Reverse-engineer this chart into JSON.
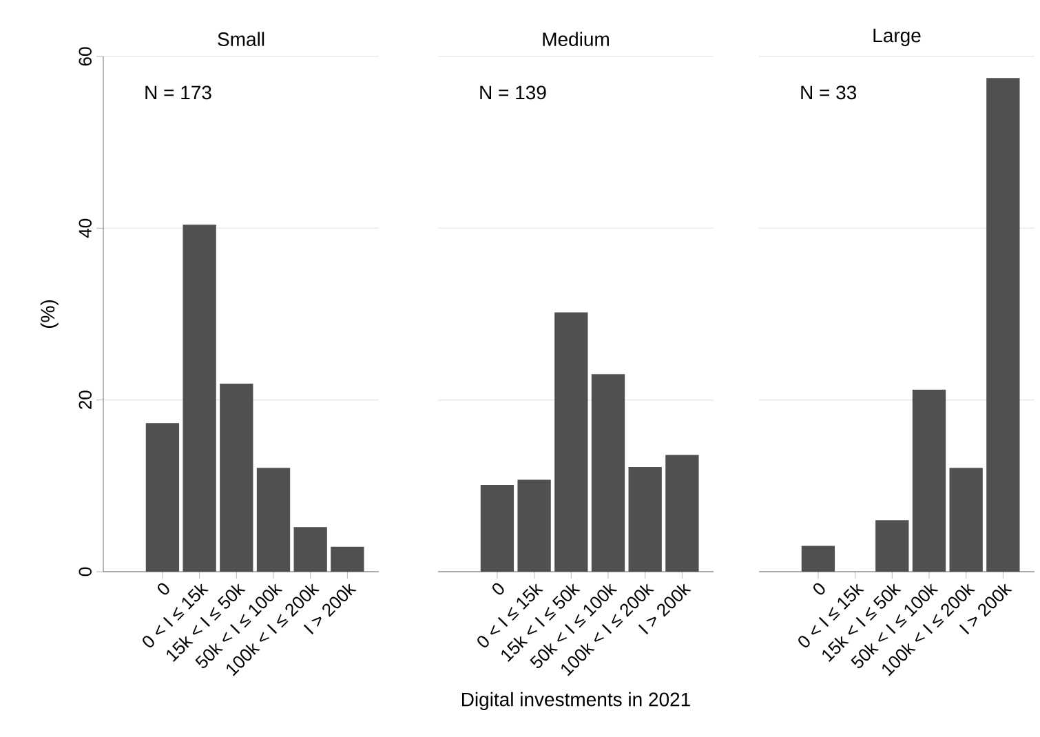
{
  "chart_data": [
    {
      "type": "bar",
      "title": "Small",
      "ylabel": "(%)",
      "categories": [
        "0",
        "0 < I ≤ 15k",
        "15k < I ≤ 50k",
        "50k < I ≤ 100k",
        "100k < I ≤ 200k",
        "I > 200k"
      ],
      "values": [
        17.3,
        40.4,
        21.9,
        12.1,
        5.2,
        2.9
      ],
      "color": "#505050",
      "ylim": [
        0,
        60
      ],
      "yticks": [
        0,
        20,
        40,
        60
      ],
      "grid": "y",
      "annotations": [
        "N = 173"
      ]
    },
    {
      "type": "bar",
      "title": "Medium",
      "xlabel": "Digital investments in 2021",
      "categories": [
        "0",
        "0 < I ≤ 15k",
        "15k < I ≤ 50k",
        "50k < I ≤ 100k",
        "100k < I ≤ 200k",
        "I > 200k"
      ],
      "values": [
        10.1,
        10.7,
        30.2,
        23.0,
        12.2,
        13.6
      ],
      "color": "#505050",
      "ylim": [
        0,
        60
      ],
      "yticks": [
        0,
        20,
        40,
        60
      ],
      "grid": "y",
      "tick_labels": "x",
      "annotations": [
        "N = 139"
      ]
    },
    {
      "type": "bar",
      "title": "Large",
      "categories": [
        "0",
        "0 < I ≤ 15k",
        "15k < I ≤ 50k",
        "50k < I ≤ 100k",
        "100k < I ≤ 200k",
        "I > 200k"
      ],
      "values": [
        3.0,
        0,
        6.0,
        21.2,
        12.1,
        57.5
      ],
      "color": "#505050",
      "ylim": [
        0,
        60
      ],
      "yticks": [
        0,
        20,
        40,
        60
      ],
      "grid": "y",
      "tick_labels": "x",
      "annotations": [
        "N = 33"
      ]
    }
  ]
}
